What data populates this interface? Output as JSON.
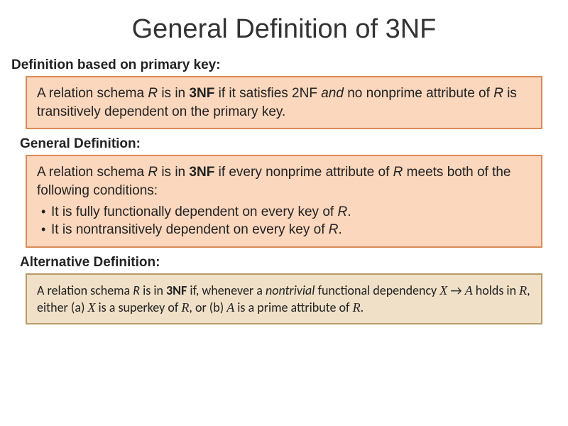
{
  "title": "General Definition of 3NF",
  "sections": {
    "pk": {
      "label": "Definition based on primary key:",
      "box": {
        "bg": "#fad7bd",
        "border": "#d98a56",
        "text_parts": {
          "p1": "A relation schema ",
          "r1": "R",
          "p2": " is in ",
          "b1": "3NF",
          "p3": " if it satisfies 2NF ",
          "and": "and",
          "p4": " no nonprime attribute of ",
          "r2": "R",
          "p5": " is transitively dependent on the primary key."
        }
      }
    },
    "general": {
      "label": "General Definition:",
      "box": {
        "bg": "#fad7bd",
        "border": "#d98a56",
        "intro": {
          "p1": "A relation schema ",
          "r1": "R",
          "p2": " is in ",
          "b1": "3NF",
          "p3": " if every nonprime attribute of ",
          "r2": "R",
          "p4": " meets both of the following conditions:"
        },
        "bullets": [
          {
            "t1": "It is fully functionally dependent on every key of ",
            "r": "R",
            "t2": "."
          },
          {
            "t1": "It is nontransitively dependent on every key of ",
            "r": "R",
            "t2": "."
          }
        ]
      }
    },
    "alt": {
      "label": "Alternative Definition:",
      "box": {
        "bg": "#f0e0c8",
        "border": "#b89a6a",
        "parts": {
          "p1": "A relation schema ",
          "r1": "R",
          "p2": " is in ",
          "b1": "3NF",
          "p3": " if, whenever a ",
          "nt": "nontrivial",
          "p4": " functional dependency ",
          "x": "X",
          "arrow": "  →  ",
          "a": "A",
          "p5": " holds in ",
          "r2": "R",
          "p6": ", either (a) ",
          "x2": "X",
          "p7": " is a superkey of ",
          "r3": "R",
          "p8": ", or (b) ",
          "a2": "A",
          "p9": " is a prime attribute of ",
          "r4": "R",
          "p10": "."
        }
      }
    }
  }
}
